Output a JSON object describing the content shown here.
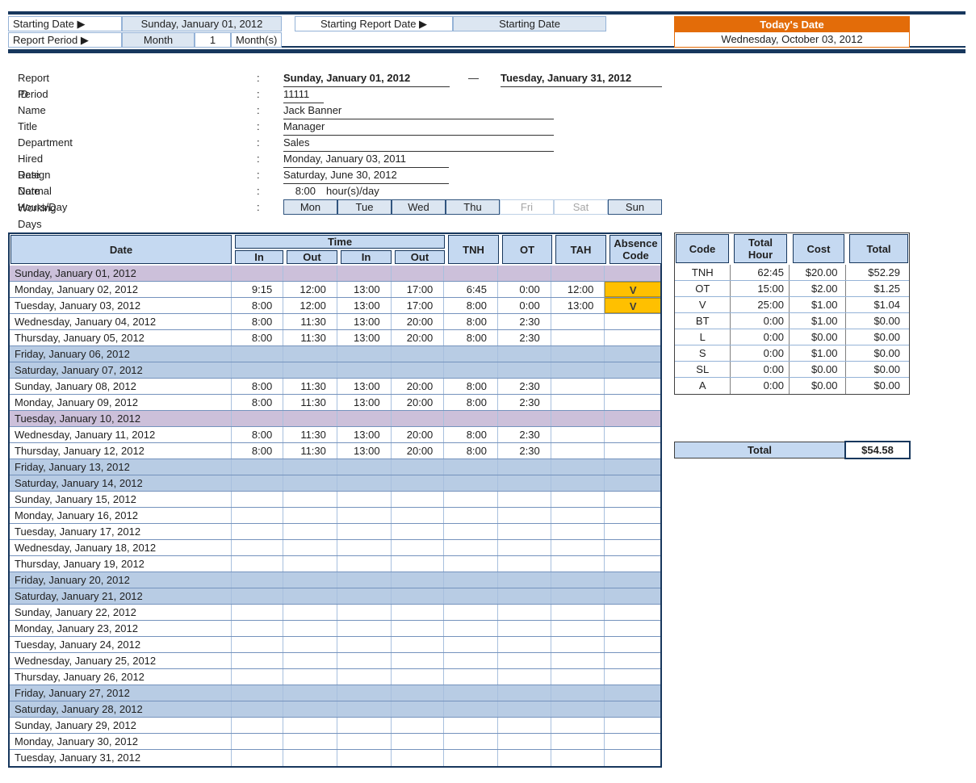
{
  "top": {
    "starting_date_label": "Starting Date ▶",
    "starting_date_value": "Sunday, January 01, 2012",
    "starting_report_date_label": "Starting Report Date ▶",
    "starting_report_date_value": "Starting Date",
    "report_period_label": "Report Period ▶",
    "report_period_unit": "Month",
    "report_period_count": "1",
    "report_period_suffix": "Month(s)",
    "todays_date_label": "Today's Date",
    "todays_date_value": "Wednesday, October 03, 2012",
    "accent_orange": "#E36C09",
    "navy": "#17375D"
  },
  "employee": {
    "colon": ":",
    "report_period_label": "Report Period",
    "report_period_start": "Sunday, January 01, 2012",
    "report_period_dash": "—",
    "report_period_end": "Tuesday, January 31, 2012",
    "id_label": "ID",
    "id_value": "11111",
    "name_label": "Name",
    "name_value": "Jack Banner",
    "title_label": "Title",
    "title_value": "Manager",
    "department_label": "Department",
    "department_value": "Sales",
    "hired_label": "Hired Date",
    "hired_value": "Monday, January 03, 2011",
    "resign_label": "Resign Date",
    "resign_value": "Saturday, June 30, 2012",
    "hours_label": "Normal Hours/Day",
    "hours_value": "8:00",
    "hours_suffix": "hour(s)/day",
    "working_days_label": "Working Days",
    "working_days": [
      {
        "label": "Mon",
        "active": true
      },
      {
        "label": "Tue",
        "active": true
      },
      {
        "label": "Wed",
        "active": true
      },
      {
        "label": "Thu",
        "active": true
      },
      {
        "label": "Fri",
        "active": false
      },
      {
        "label": "Sat",
        "active": false
      },
      {
        "label": "Sun",
        "active": true
      }
    ]
  },
  "timesheet": {
    "headers": {
      "date": "Date",
      "time_group": "Time",
      "in1": "In",
      "out1": "Out",
      "in2": "In",
      "out2": "Out",
      "tnh": "TNH",
      "ot": "OT",
      "tah": "TAH",
      "absence": "Absence Code"
    },
    "row_colors": {
      "holiday": "#CCC0DA",
      "weekend": "#B8CCE4",
      "absence": "#FFC000"
    },
    "rows": [
      {
        "date": "Sunday, January 01, 2012",
        "type": "holiday",
        "in1": "",
        "out1": "",
        "in2": "",
        "out2": "",
        "tnh": "",
        "ot": "",
        "tah": "",
        "abs": ""
      },
      {
        "date": "Monday, January 02, 2012",
        "type": "normal",
        "in1": "9:15",
        "out1": "12:00",
        "in2": "13:00",
        "out2": "17:00",
        "tnh": "6:45",
        "ot": "0:00",
        "tah": "12:00",
        "abs": "V"
      },
      {
        "date": "Tuesday, January 03, 2012",
        "type": "normal",
        "in1": "8:00",
        "out1": "12:00",
        "in2": "13:00",
        "out2": "17:00",
        "tnh": "8:00",
        "ot": "0:00",
        "tah": "13:00",
        "abs": "V"
      },
      {
        "date": "Wednesday, January 04, 2012",
        "type": "normal",
        "in1": "8:00",
        "out1": "11:30",
        "in2": "13:00",
        "out2": "20:00",
        "tnh": "8:00",
        "ot": "2:30",
        "tah": "",
        "abs": ""
      },
      {
        "date": "Thursday, January 05, 2012",
        "type": "normal",
        "in1": "8:00",
        "out1": "11:30",
        "in2": "13:00",
        "out2": "20:00",
        "tnh": "8:00",
        "ot": "2:30",
        "tah": "",
        "abs": ""
      },
      {
        "date": "Friday, January 06, 2012",
        "type": "weekend",
        "in1": "",
        "out1": "",
        "in2": "",
        "out2": "",
        "tnh": "",
        "ot": "",
        "tah": "",
        "abs": ""
      },
      {
        "date": "Saturday, January 07, 2012",
        "type": "weekend",
        "in1": "",
        "out1": "",
        "in2": "",
        "out2": "",
        "tnh": "",
        "ot": "",
        "tah": "",
        "abs": ""
      },
      {
        "date": "Sunday, January 08, 2012",
        "type": "normal",
        "in1": "8:00",
        "out1": "11:30",
        "in2": "13:00",
        "out2": "20:00",
        "tnh": "8:00",
        "ot": "2:30",
        "tah": "",
        "abs": ""
      },
      {
        "date": "Monday, January 09, 2012",
        "type": "normal",
        "in1": "8:00",
        "out1": "11:30",
        "in2": "13:00",
        "out2": "20:00",
        "tnh": "8:00",
        "ot": "2:30",
        "tah": "",
        "abs": ""
      },
      {
        "date": "Tuesday, January 10, 2012",
        "type": "holiday",
        "in1": "",
        "out1": "",
        "in2": "",
        "out2": "",
        "tnh": "",
        "ot": "",
        "tah": "",
        "abs": ""
      },
      {
        "date": "Wednesday, January 11, 2012",
        "type": "normal",
        "in1": "8:00",
        "out1": "11:30",
        "in2": "13:00",
        "out2": "20:00",
        "tnh": "8:00",
        "ot": "2:30",
        "tah": "",
        "abs": ""
      },
      {
        "date": "Thursday, January 12, 2012",
        "type": "normal",
        "in1": "8:00",
        "out1": "11:30",
        "in2": "13:00",
        "out2": "20:00",
        "tnh": "8:00",
        "ot": "2:30",
        "tah": "",
        "abs": ""
      },
      {
        "date": "Friday, January 13, 2012",
        "type": "weekend",
        "in1": "",
        "out1": "",
        "in2": "",
        "out2": "",
        "tnh": "",
        "ot": "",
        "tah": "",
        "abs": ""
      },
      {
        "date": "Saturday, January 14, 2012",
        "type": "weekend",
        "in1": "",
        "out1": "",
        "in2": "",
        "out2": "",
        "tnh": "",
        "ot": "",
        "tah": "",
        "abs": ""
      },
      {
        "date": "Sunday, January 15, 2012",
        "type": "normal",
        "in1": "",
        "out1": "",
        "in2": "",
        "out2": "",
        "tnh": "",
        "ot": "",
        "tah": "",
        "abs": ""
      },
      {
        "date": "Monday, January 16, 2012",
        "type": "normal",
        "in1": "",
        "out1": "",
        "in2": "",
        "out2": "",
        "tnh": "",
        "ot": "",
        "tah": "",
        "abs": ""
      },
      {
        "date": "Tuesday, January 17, 2012",
        "type": "normal",
        "in1": "",
        "out1": "",
        "in2": "",
        "out2": "",
        "tnh": "",
        "ot": "",
        "tah": "",
        "abs": ""
      },
      {
        "date": "Wednesday, January 18, 2012",
        "type": "normal",
        "in1": "",
        "out1": "",
        "in2": "",
        "out2": "",
        "tnh": "",
        "ot": "",
        "tah": "",
        "abs": ""
      },
      {
        "date": "Thursday, January 19, 2012",
        "type": "normal",
        "in1": "",
        "out1": "",
        "in2": "",
        "out2": "",
        "tnh": "",
        "ot": "",
        "tah": "",
        "abs": ""
      },
      {
        "date": "Friday, January 20, 2012",
        "type": "weekend",
        "in1": "",
        "out1": "",
        "in2": "",
        "out2": "",
        "tnh": "",
        "ot": "",
        "tah": "",
        "abs": ""
      },
      {
        "date": "Saturday, January 21, 2012",
        "type": "weekend",
        "in1": "",
        "out1": "",
        "in2": "",
        "out2": "",
        "tnh": "",
        "ot": "",
        "tah": "",
        "abs": ""
      },
      {
        "date": "Sunday, January 22, 2012",
        "type": "normal",
        "in1": "",
        "out1": "",
        "in2": "",
        "out2": "",
        "tnh": "",
        "ot": "",
        "tah": "",
        "abs": ""
      },
      {
        "date": "Monday, January 23, 2012",
        "type": "normal",
        "in1": "",
        "out1": "",
        "in2": "",
        "out2": "",
        "tnh": "",
        "ot": "",
        "tah": "",
        "abs": ""
      },
      {
        "date": "Tuesday, January 24, 2012",
        "type": "normal",
        "in1": "",
        "out1": "",
        "in2": "",
        "out2": "",
        "tnh": "",
        "ot": "",
        "tah": "",
        "abs": ""
      },
      {
        "date": "Wednesday, January 25, 2012",
        "type": "normal",
        "in1": "",
        "out1": "",
        "in2": "",
        "out2": "",
        "tnh": "",
        "ot": "",
        "tah": "",
        "abs": ""
      },
      {
        "date": "Thursday, January 26, 2012",
        "type": "normal",
        "in1": "",
        "out1": "",
        "in2": "",
        "out2": "",
        "tnh": "",
        "ot": "",
        "tah": "",
        "abs": ""
      },
      {
        "date": "Friday, January 27, 2012",
        "type": "weekend",
        "in1": "",
        "out1": "",
        "in2": "",
        "out2": "",
        "tnh": "",
        "ot": "",
        "tah": "",
        "abs": ""
      },
      {
        "date": "Saturday, January 28, 2012",
        "type": "weekend",
        "in1": "",
        "out1": "",
        "in2": "",
        "out2": "",
        "tnh": "",
        "ot": "",
        "tah": "",
        "abs": ""
      },
      {
        "date": "Sunday, January 29, 2012",
        "type": "normal",
        "in1": "",
        "out1": "",
        "in2": "",
        "out2": "",
        "tnh": "",
        "ot": "",
        "tah": "",
        "abs": ""
      },
      {
        "date": "Monday, January 30, 2012",
        "type": "normal",
        "in1": "",
        "out1": "",
        "in2": "",
        "out2": "",
        "tnh": "",
        "ot": "",
        "tah": "",
        "abs": ""
      },
      {
        "date": "Tuesday, January 31, 2012",
        "type": "normal",
        "in1": "",
        "out1": "",
        "in2": "",
        "out2": "",
        "tnh": "",
        "ot": "",
        "tah": "",
        "abs": ""
      }
    ]
  },
  "summary": {
    "headers": {
      "code": "Code",
      "total_hour": "Total Hour",
      "cost": "Cost",
      "total": "Total"
    },
    "rows": [
      {
        "code": "TNH",
        "hour": "62:45",
        "cost": "$20.00",
        "total": "$52.29"
      },
      {
        "code": "OT",
        "hour": "15:00",
        "cost": "$2.00",
        "total": "$1.25"
      },
      {
        "code": "V",
        "hour": "25:00",
        "cost": "$1.00",
        "total": "$1.04"
      },
      {
        "code": "BT",
        "hour": "0:00",
        "cost": "$1.00",
        "total": "$0.00"
      },
      {
        "code": "L",
        "hour": "0:00",
        "cost": "$0.00",
        "total": "$0.00"
      },
      {
        "code": "S",
        "hour": "0:00",
        "cost": "$1.00",
        "total": "$0.00"
      },
      {
        "code": "SL",
        "hour": "0:00",
        "cost": "$0.00",
        "total": "$0.00"
      },
      {
        "code": "A",
        "hour": "0:00",
        "cost": "$0.00",
        "total": "$0.00"
      }
    ],
    "total_label": "Total",
    "total_value": "$54.58"
  }
}
